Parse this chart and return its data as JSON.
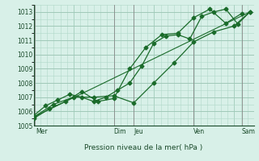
{
  "background_color": "#d8f0e8",
  "grid_color": "#b0d8c8",
  "line_color": "#1a6b2a",
  "title": "Pression niveau de la mer( hPa )",
  "xlim": [
    0,
    5.5
  ],
  "ylim": [
    1005,
    1013.5
  ],
  "yticks": [
    1005,
    1006,
    1007,
    1008,
    1009,
    1010,
    1011,
    1012,
    1013
  ],
  "day_labels": [
    "Mer",
    "Dim",
    "Jeu",
    "Ven",
    "Sam"
  ],
  "day_positions": [
    0.05,
    2.0,
    2.5,
    4.0,
    5.2
  ],
  "vline_positions": [
    0.02,
    2.0,
    2.5,
    4.0,
    5.2
  ],
  "series1_x": [
    0.0,
    0.3,
    0.6,
    0.9,
    1.2,
    1.5,
    1.8,
    2.1,
    2.4,
    2.7,
    3.0,
    3.3,
    3.6,
    3.9,
    4.2,
    4.5,
    4.8,
    5.1,
    5.4
  ],
  "series1_y": [
    1005.7,
    1006.4,
    1006.8,
    1007.2,
    1007.0,
    1006.7,
    1007.0,
    1007.5,
    1008.0,
    1009.2,
    1010.8,
    1011.3,
    1011.4,
    1011.1,
    1012.7,
    1013.0,
    1013.2,
    1012.15,
    1013.0
  ],
  "series2_x": [
    0.0,
    0.4,
    0.8,
    1.2,
    1.6,
    2.0,
    2.4,
    2.8,
    3.2,
    3.6,
    4.0,
    4.4,
    4.8,
    5.2
  ],
  "series2_y": [
    1005.5,
    1006.2,
    1006.7,
    1007.4,
    1006.7,
    1006.9,
    1009.0,
    1010.5,
    1011.4,
    1011.5,
    1012.6,
    1013.2,
    1012.2,
    1012.9
  ],
  "series3_x": [
    0.0,
    0.5,
    1.0,
    1.5,
    2.0,
    2.5,
    3.0,
    3.5,
    4.0,
    4.5,
    5.0,
    5.4
  ],
  "series3_y": [
    1005.6,
    1006.5,
    1007.0,
    1007.0,
    1007.1,
    1006.6,
    1008.0,
    1009.4,
    1010.9,
    1011.6,
    1012.0,
    1013.0
  ],
  "trend_x": [
    0.0,
    5.4
  ],
  "trend_y": [
    1005.6,
    1013.0
  ]
}
